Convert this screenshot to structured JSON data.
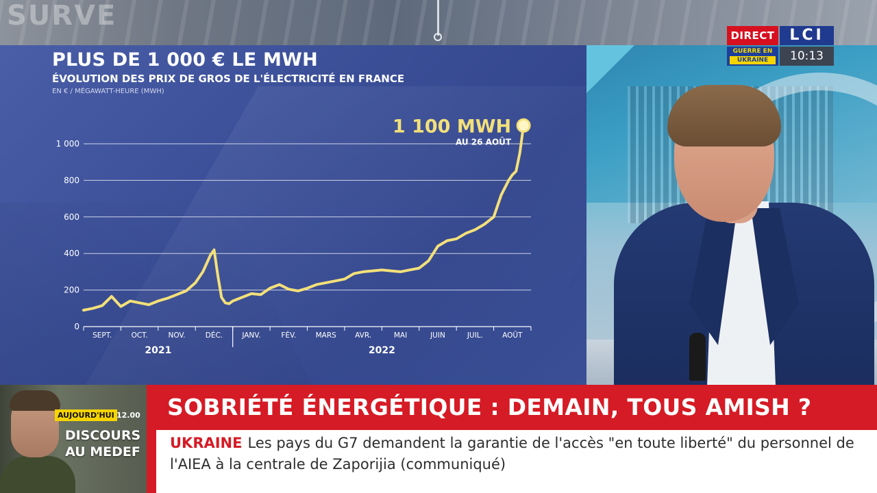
{
  "studio": {
    "mark": "SURVE"
  },
  "chart": {
    "title": "PLUS DE 1 000 € LE MWH",
    "subtitle": "ÉVOLUTION DES PRIX DE GROS DE L'ÉLECTRICITÉ EN FRANCE",
    "unit": "EN € / MÉGAWATT-HEURE (MWH)",
    "callout_value": "1 100 MWH",
    "callout_date": "AU 26 AOÛT"
  },
  "chart_data": {
    "type": "line",
    "title": "PLUS DE 1 000 € LE MWH",
    "subtitle": "ÉVOLUTION DES PRIX DE GROS DE L'ÉLECTRICITÉ EN FRANCE",
    "ylabel": "EN € / MÉGAWATT-HEURE (MWH)",
    "xlabel": "",
    "ylim": [
      0,
      1000
    ],
    "yticks": [
      0,
      200,
      400,
      600,
      800,
      1000
    ],
    "ytick_labels": [
      "0",
      "200",
      "400",
      "600",
      "800",
      "1 000"
    ],
    "months": [
      "SEPT.",
      "OCT.",
      "NOV.",
      "DÉC.",
      "JANV.",
      "FÉV.",
      "MARS",
      "AVR.",
      "MAI",
      "JUIN",
      "JUIL.",
      "AOÛT"
    ],
    "years": [
      {
        "label": "2021",
        "from": 0,
        "to": 4
      },
      {
        "label": "2022",
        "from": 4,
        "to": 12
      }
    ],
    "grid": true,
    "line_color": "#f3e07a",
    "x_unit": "months since 1 Sept 2021",
    "x": [
      0,
      0.25,
      0.5,
      0.75,
      1.0,
      1.25,
      1.5,
      1.75,
      2.0,
      2.25,
      2.5,
      2.75,
      3.0,
      3.2,
      3.4,
      3.5,
      3.6,
      3.7,
      3.8,
      3.9,
      4.0,
      4.25,
      4.5,
      4.75,
      5.0,
      5.25,
      5.5,
      5.75,
      6.0,
      6.25,
      6.5,
      6.75,
      7.0,
      7.25,
      7.5,
      7.75,
      8.0,
      8.25,
      8.5,
      8.75,
      9.0,
      9.25,
      9.5,
      9.75,
      10.0,
      10.25,
      10.5,
      10.75,
      11.0,
      11.2,
      11.4,
      11.5,
      11.6,
      11.7,
      11.8
    ],
    "values": [
      90,
      100,
      115,
      165,
      110,
      140,
      130,
      120,
      140,
      155,
      175,
      195,
      240,
      300,
      390,
      420,
      280,
      160,
      130,
      125,
      140,
      160,
      180,
      175,
      210,
      230,
      205,
      195,
      210,
      230,
      240,
      250,
      260,
      290,
      300,
      305,
      310,
      305,
      300,
      310,
      320,
      360,
      440,
      470,
      480,
      510,
      530,
      560,
      600,
      720,
      800,
      830,
      850,
      950,
      1100
    ],
    "annotations": [
      {
        "x": 11.8,
        "y": 1100,
        "label": "1 100 MWH",
        "sublabel": "AU 26 AOÛT"
      }
    ]
  },
  "corner": {
    "direct": "DIRECT",
    "logo": "LCI",
    "war_line1": "GUERRE EN",
    "war_line2": "UKRAINE",
    "clock": "10:13"
  },
  "inset": {
    "today": "AUJOURD'HUI",
    "time": "12.00",
    "line1": "DISCOURS",
    "line2": "AU MEDEF"
  },
  "headline": "SOBRIÉTÉ ÉNERGÉTIQUE : DEMAIN, TOUS AMISH ?",
  "ticker": {
    "label": "UKRAINE",
    "text": "Les pays du G7 demandent la garantie de l'accès \"en toute liberté\" du personnel de l'AIEA à la centrale de Zaporijia (communiqué)"
  },
  "colors": {
    "chart_bg": "#3f53a0",
    "line": "#f3e07a",
    "headline_bg": "#d51b25",
    "direct_bg": "#d6101f",
    "logo_bg": "#1f3a8f",
    "war_yellow": "#f5d400"
  }
}
